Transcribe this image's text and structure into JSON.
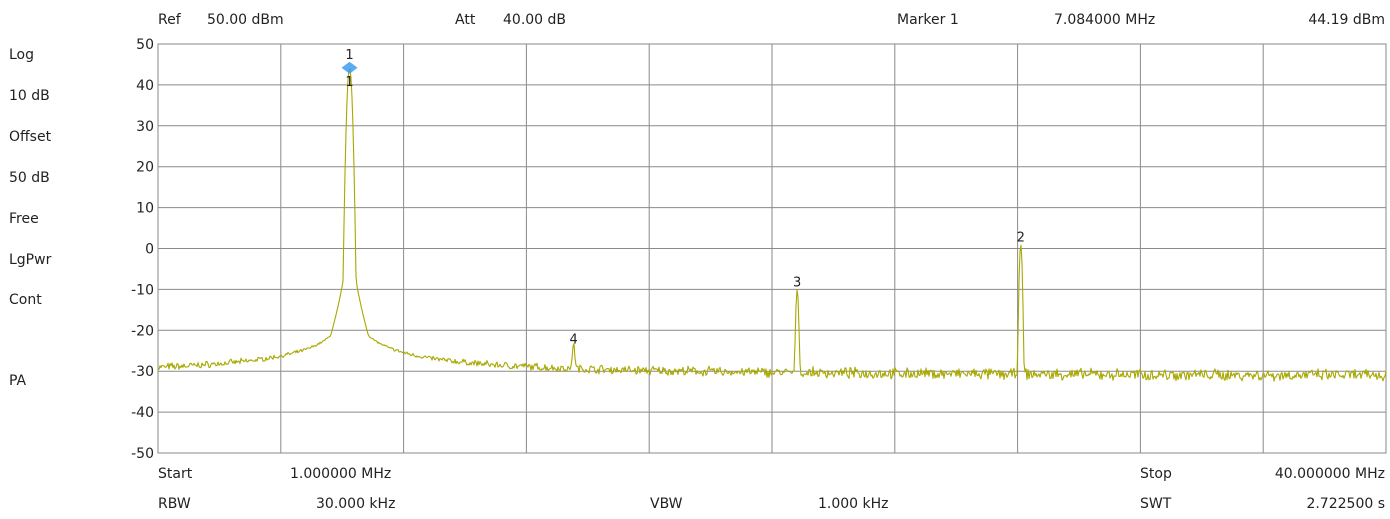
{
  "header": {
    "ref_label": "Ref",
    "ref_value": "50.00 dBm",
    "att_label": "Att",
    "att_value": "40.00 dB",
    "marker_label": "Marker 1",
    "marker_freq": "7.084000 MHz",
    "marker_level": "44.19 dBm"
  },
  "sidebar": {
    "scale_type": "Log",
    "scale_div": "10 dB",
    "offset_label": "Offset",
    "offset_value": "50 dB",
    "trigger": "Free",
    "detector": "LgPwr",
    "sweep_mode": "Cont",
    "preamp": "PA"
  },
  "footer": {
    "start_label": "Start",
    "start_value": "1.000000 MHz",
    "stop_label": "Stop",
    "stop_value": "40.000000 MHz",
    "rbw_label": "RBW",
    "rbw_value": "30.000 kHz",
    "vbw_label": "VBW",
    "vbw_value": "1.000 kHz",
    "swt_label": "SWT",
    "swt_value": "2.722500 s"
  },
  "colors": {
    "trace": "#a8a800",
    "grid": "#8a8a8a",
    "marker_active": "#3c9cf0"
  },
  "chart_data": {
    "type": "line",
    "x_unit": "MHz",
    "y_unit": "dBm",
    "xlim": [
      1.0,
      40.0
    ],
    "ylim": [
      -50,
      50
    ],
    "yticks": [
      50,
      40,
      30,
      20,
      10,
      0,
      -10,
      -20,
      -30,
      -40,
      -50
    ],
    "x_divisions": 10,
    "grid": true,
    "noise_floor": -31.5,
    "peaks": [
      {
        "marker": "1",
        "freq": 7.084,
        "level": 44.19,
        "shape": "broad",
        "active": true
      },
      {
        "marker": "4",
        "freq": 14.2,
        "level": -24,
        "shape": "narrow",
        "active": false
      },
      {
        "marker": "3",
        "freq": 21.3,
        "level": -10,
        "shape": "narrow",
        "active": false
      },
      {
        "marker": "2",
        "freq": 28.4,
        "level": 1,
        "shape": "narrow",
        "active": false
      }
    ]
  }
}
